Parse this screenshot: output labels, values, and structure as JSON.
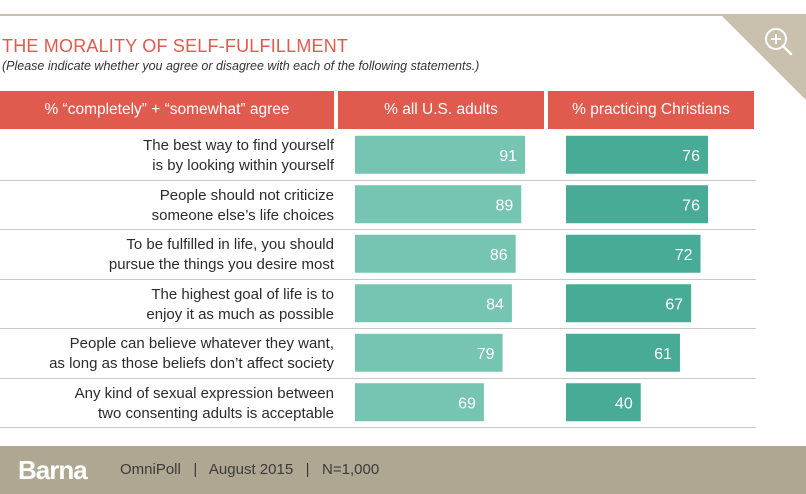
{
  "chart_data": {
    "type": "bar",
    "title": "THE MORALITY OF SELF-FULFILLMENT",
    "subtitle": "(Please indicate whether you agree or disagree with each of the following statements.)",
    "row_header": "% “completely” + “somewhat” agree",
    "categories": [
      [
        "The best way to find yourself",
        "is by looking within yourself"
      ],
      [
        "People should not criticize",
        "someone else’s life choices"
      ],
      [
        "To be fulfilled in life, you should",
        "pursue the things you desire most"
      ],
      [
        "The highest goal of life is to",
        "enjoy it as much as possible"
      ],
      [
        "People can believe whatever they want,",
        "as long as those beliefs don’t affect society"
      ],
      [
        "Any kind of sexual expression between",
        "two consenting adults is acceptable"
      ]
    ],
    "series": [
      {
        "name": "% all U.S. adults",
        "color": "#76c4b2",
        "values": [
          91,
          89,
          86,
          84,
          79,
          69
        ]
      },
      {
        "name": "% practicing Christians",
        "color": "#47ab95",
        "values": [
          76,
          76,
          72,
          67,
          61,
          40
        ]
      }
    ],
    "xlim": [
      0,
      100
    ]
  },
  "footer": {
    "logo": "Barna",
    "text": "OmniPoll   |   August 2015   |   N=1,000"
  },
  "icons": {
    "zoom": "zoom-in-icon"
  },
  "colors": {
    "accent": "#e05a4e",
    "footer": "#b0a792",
    "corner": "#c9c1ae"
  }
}
